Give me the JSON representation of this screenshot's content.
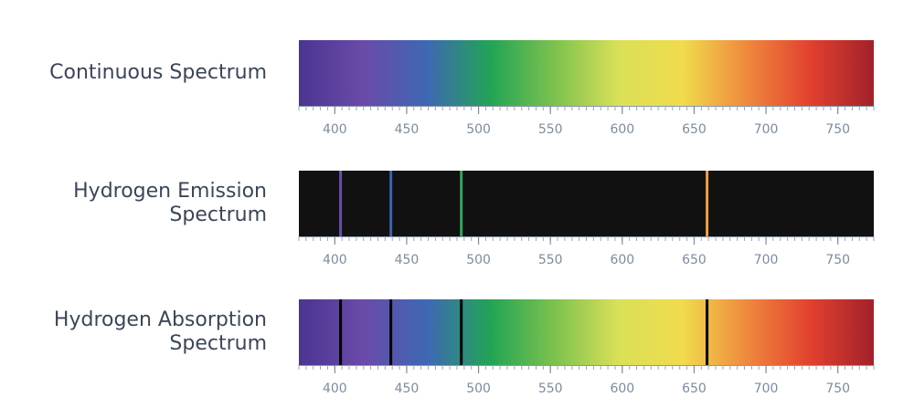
{
  "chart_data": [
    {
      "type": "spectrum",
      "title": [
        "Continuous Spectrum"
      ],
      "xlim": [
        375,
        775
      ],
      "xticks": [
        400,
        450,
        500,
        550,
        600,
        650,
        700,
        750
      ],
      "minor_tick_step": 5,
      "background": "gradient",
      "gradient": [
        "#4a3590",
        "#6a4aa8",
        "#3e68b4",
        "#22a455",
        "#7cc24e",
        "#d9e058",
        "#f0dc4c",
        "#ef8a3e",
        "#e2412e",
        "#a2212a"
      ],
      "lines": [],
      "line_colors": []
    },
    {
      "type": "spectrum",
      "title": [
        "Hydrogen Emission",
        "Spectrum"
      ],
      "xlim": [
        375,
        775
      ],
      "xticks": [
        400,
        450,
        500,
        550,
        600,
        650,
        700,
        750
      ],
      "minor_tick_step": 5,
      "background": "#111111",
      "gradient": [],
      "lines": [
        404,
        439,
        488,
        659
      ],
      "line_colors": [
        "#6a4fa8",
        "#3a62b0",
        "#2fa85a",
        "#f0a040"
      ]
    },
    {
      "type": "spectrum",
      "title": [
        "Hydrogen Absorption",
        "Spectrum"
      ],
      "xlim": [
        375,
        775
      ],
      "xticks": [
        400,
        450,
        500,
        550,
        600,
        650,
        700,
        750
      ],
      "minor_tick_step": 5,
      "background": "gradient",
      "gradient": [
        "#4a3590",
        "#6a4aa8",
        "#3e68b4",
        "#22a455",
        "#7cc24e",
        "#d9e058",
        "#f0dc4c",
        "#ef8a3e",
        "#e2412e",
        "#a2212a"
      ],
      "lines": [
        404,
        439,
        488,
        659
      ],
      "line_colors": [
        "#000000",
        "#000000",
        "#000000",
        "#000000"
      ]
    }
  ]
}
